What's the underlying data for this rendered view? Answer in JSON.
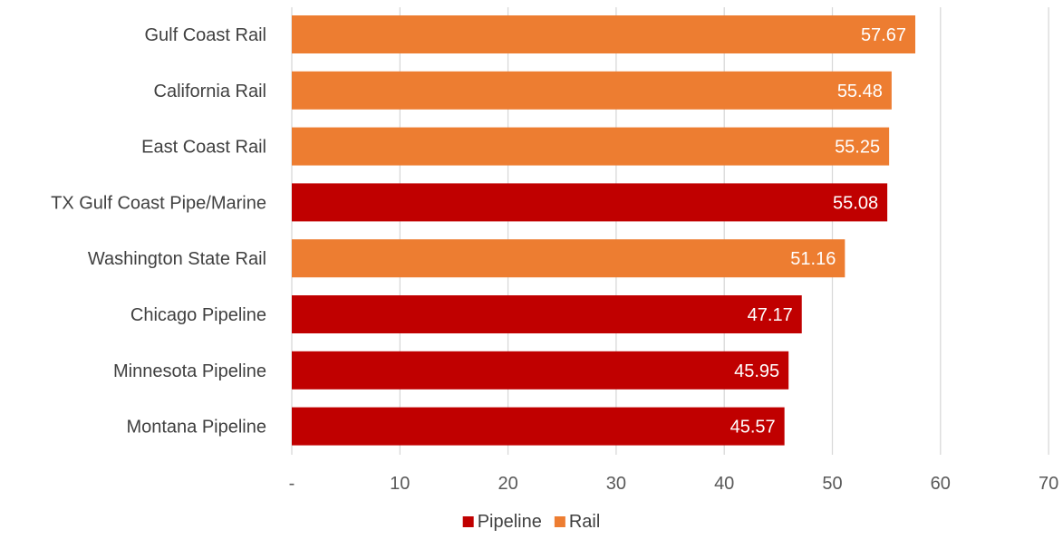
{
  "chart_data": {
    "type": "bar",
    "orientation": "horizontal",
    "categories": [
      "Gulf Coast Rail",
      "California Rail",
      "East Coast Rail",
      "TX Gulf Coast Pipe/Marine",
      "Washington State Rail",
      "Chicago Pipeline",
      "Minnesota Pipeline",
      "Montana Pipeline"
    ],
    "values": [
      57.67,
      55.48,
      55.25,
      55.08,
      51.16,
      47.17,
      45.95,
      45.57
    ],
    "data_labels": [
      "57.67",
      "55.48",
      "55.25",
      "55.08",
      "51.16",
      "47.17",
      "45.95",
      "45.57"
    ],
    "series_of_bar": [
      "Rail",
      "Rail",
      "Rail",
      "Pipeline",
      "Rail",
      "Pipeline",
      "Pipeline",
      "Pipeline"
    ],
    "series": [
      {
        "name": "Pipeline",
        "color": "#c00000"
      },
      {
        "name": "Rail",
        "color": "#ed7d31"
      }
    ],
    "xlim": [
      0,
      70
    ],
    "xticks": [
      0,
      10,
      20,
      30,
      40,
      50,
      60,
      70
    ],
    "xtick_labels": [
      "-",
      "10",
      "20",
      "30",
      "40",
      "50",
      "60",
      "70"
    ],
    "grid": true,
    "legend_position": "bottom"
  }
}
